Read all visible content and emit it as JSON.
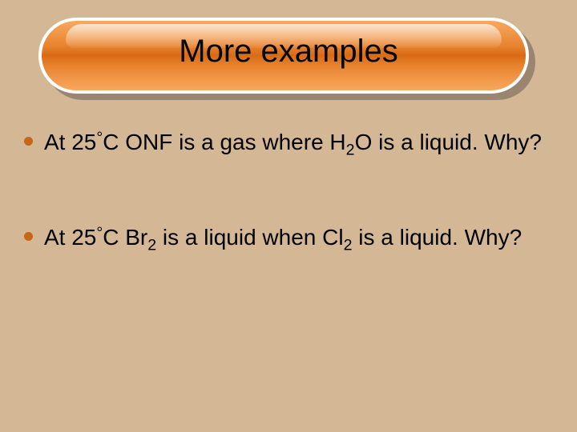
{
  "slide": {
    "title": "More examples",
    "background_color": "#d4b896",
    "title_bar": {
      "gradient_top": "#f9a85f",
      "gradient_mid": "#d96a15",
      "border_color": "#ffffff",
      "shadow_color": "#9a8670",
      "title_fontsize": 40,
      "title_color": "#000000"
    },
    "bullets": [
      {
        "text_parts": [
          "At 25",
          "°",
          "C ONF is a gas where H",
          "2",
          "O is a liquid. Why?"
        ],
        "subscript_indices": [
          3
        ],
        "degree_indices": [
          1
        ]
      },
      {
        "text_parts": [
          "At 25",
          "°",
          "C Br",
          "2",
          " is a liquid when Cl",
          "2",
          " is a liquid. Why?"
        ],
        "subscript_indices": [
          3,
          5
        ],
        "degree_indices": [
          1
        ]
      }
    ],
    "bullet_dot_color": "#c76519",
    "body_fontsize": 28,
    "body_color": "#000000"
  }
}
